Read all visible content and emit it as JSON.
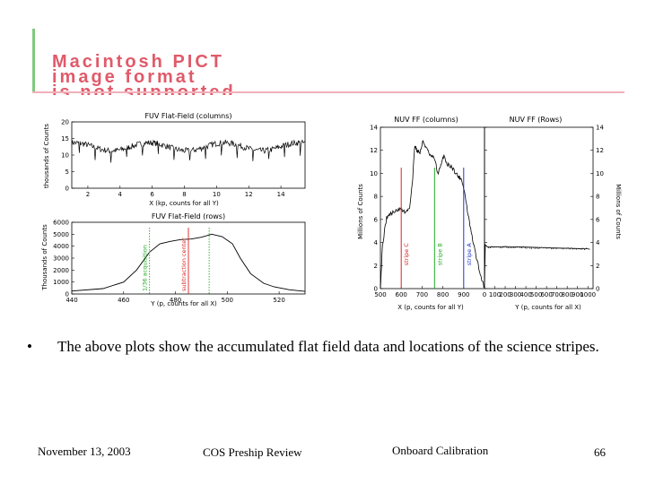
{
  "pict_placeholder": {
    "lines": [
      "Macintosh PICT",
      "image format",
      "is not supported"
    ]
  },
  "chart_data": [
    {
      "type": "line",
      "title": "FUV Flat-Field (columns)",
      "xlabel": "X (kp, counts for all Y)",
      "ylabel": "thousands of Counts",
      "xlim": [
        1,
        15.5
      ],
      "ylim": [
        0,
        20
      ],
      "xticks": [
        2,
        4,
        6,
        8,
        10,
        12,
        14
      ],
      "yticks": [
        0,
        5,
        10,
        15,
        20
      ],
      "baseline": 12.5,
      "wave_amplitude": 1.2,
      "noise": 0.9
    },
    {
      "type": "line",
      "title": "FUV Flat-Field (rows)",
      "xlabel": "Y (p, counts for all X)",
      "ylabel": "Thousands of Counts",
      "xlim": [
        440,
        530
      ],
      "ylim": [
        0,
        6000
      ],
      "xticks": [
        440,
        460,
        480,
        500,
        520
      ],
      "yticks": [
        0,
        1000,
        2000,
        3000,
        4000,
        5000,
        6000
      ],
      "x": [
        440,
        452,
        460,
        465,
        470,
        474,
        478,
        482,
        486,
        490,
        494,
        498,
        502,
        505,
        509,
        514,
        518,
        524,
        530
      ],
      "y": [
        250,
        450,
        1000,
        2000,
        3500,
        4200,
        4400,
        4550,
        4600,
        4750,
        5000,
        4800,
        4200,
        3000,
        1700,
        900,
        600,
        350,
        220
      ],
      "markers": [
        {
          "label": "1/36 acquisition",
          "x": 470,
          "color": "#22aa22",
          "style": "dotted"
        },
        {
          "label": "subtraction center",
          "x": 485,
          "color": "#dd2222",
          "style": "solid"
        },
        {
          "label": "",
          "x": 493,
          "color": "#22aa22",
          "style": "dotted"
        }
      ]
    },
    {
      "type": "line",
      "title": "NUV FF (columns)",
      "xlabel": "X (p, counts for all Y)",
      "ylabel": "Millions of Counts",
      "xlim": [
        500,
        1000
      ],
      "ylim": [
        0,
        14
      ],
      "xticks": [
        500,
        600,
        700,
        800,
        900
      ],
      "yticks": [
        0,
        2,
        4,
        6,
        8,
        10,
        12,
        14
      ],
      "x": [
        500,
        510,
        530,
        550,
        580,
        600,
        620,
        640,
        655,
        665,
        675,
        690,
        705,
        720,
        740,
        760,
        775,
        790,
        805,
        820,
        840,
        860,
        875,
        890,
        905,
        920,
        940,
        960,
        980,
        1000
      ],
      "y": [
        0.1,
        3.8,
        6.2,
        6.5,
        6.8,
        6.9,
        6.6,
        7.0,
        9.5,
        12.5,
        12.0,
        11.8,
        12.8,
        12.2,
        11.5,
        11.3,
        10.0,
        10.6,
        11.6,
        10.8,
        10.6,
        10.1,
        9.7,
        9.5,
        8.3,
        6.5,
        4.5,
        2.8,
        1.2,
        0.1
      ],
      "markers": [
        {
          "label": "stripe C",
          "x": 600,
          "color": "#dd2222"
        },
        {
          "label": "stripe B",
          "x": 760,
          "color": "#22aa22"
        },
        {
          "label": "stripe A",
          "x": 900,
          "color": "#2233cc"
        }
      ]
    },
    {
      "type": "line",
      "title": "NUV FF (Rows)",
      "xlabel": "Y (p, counts for all X)",
      "ylabel": "Millions of Counts",
      "xlim": [
        0,
        1050
      ],
      "ylim": [
        0,
        14
      ],
      "xticks": [
        0,
        100,
        200,
        300,
        400,
        500,
        600,
        700,
        800,
        900,
        1000
      ],
      "yticks": [
        0,
        2,
        4,
        6,
        8,
        10,
        12,
        14
      ],
      "x": [
        0,
        3,
        8,
        30,
        200,
        400,
        600,
        800,
        1000,
        1020
      ],
      "y": [
        0,
        1.5,
        3.8,
        3.6,
        3.65,
        3.6,
        3.55,
        3.5,
        3.45,
        3.4
      ]
    }
  ],
  "bullet": {
    "symbol": "•",
    "text": "The above plots show the accumulated flat field data and locations of the science stripes."
  },
  "footer": {
    "date": "November 13, 2003",
    "event": "COS Preship Review",
    "topic": "Onboard Calibration",
    "page": "66"
  }
}
